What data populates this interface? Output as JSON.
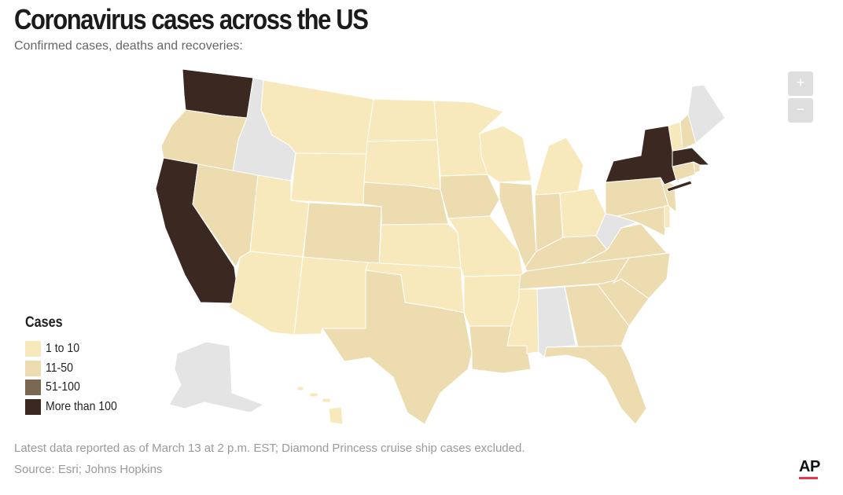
{
  "header": {
    "title": "Coronavirus cases across the US",
    "subtitle": "Confirmed cases, deaths and recoveries:"
  },
  "zoom": {
    "in_label": "+",
    "out_label": "−"
  },
  "legend": {
    "title": "Cases",
    "items": [
      {
        "label": "1 to 10",
        "color": "#f8e9bd"
      },
      {
        "label": "11-50",
        "color": "#ecdcb0"
      },
      {
        "label": "51-100",
        "color": "#7b6853"
      },
      {
        "label": "More than 100",
        "color": "#3b2820"
      }
    ]
  },
  "no_data_color": "#e4e4e4",
  "states": {
    "WA": "More than 100",
    "CA": "More than 100",
    "NY": "More than 100",
    "MA": "More than 100",
    "OR": "11-50",
    "NV": "11-50",
    "CO": "11-50",
    "NE": "11-50",
    "IA": "11-50",
    "IL": "11-50",
    "IN": "11-50",
    "KY": "11-50",
    "TN": "11-50",
    "NC": "11-50",
    "SC": "11-50",
    "GA": "11-50",
    "FL": "11-50",
    "TX": "11-50",
    "LA": "11-50",
    "PA": "11-50",
    "NJ": "11-50",
    "MD": "11-50",
    "CT": "11-50",
    "VA": "11-50",
    "RI": "11-50",
    "NH": "11-50",
    "MT": "1 to 10",
    "ND": "1 to 10",
    "SD": "1 to 10",
    "WY": "1 to 10",
    "UT": "1 to 10",
    "AZ": "1 to 10",
    "NM": "1 to 10",
    "KS": "1 to 10",
    "OK": "1 to 10",
    "MN": "1 to 10",
    "WI": "1 to 10",
    "MI": "1 to 10",
    "MO": "1 to 10",
    "AR": "1 to 10",
    "MS": "1 to 10",
    "OH": "1 to 10",
    "VT": "1 to 10",
    "DE": "1 to 10",
    "HI": "1 to 10",
    "ID": "no data",
    "AL": "no data",
    "WV": "no data",
    "ME": "no data",
    "AK": "no data"
  },
  "footer": {
    "note": "Latest data reported as of March 13 at 2 p.m. EST; Diamond Princess cruise ship cases excluded.",
    "source": "Source: Esri; Johns Hopkins",
    "logo": "AP"
  }
}
